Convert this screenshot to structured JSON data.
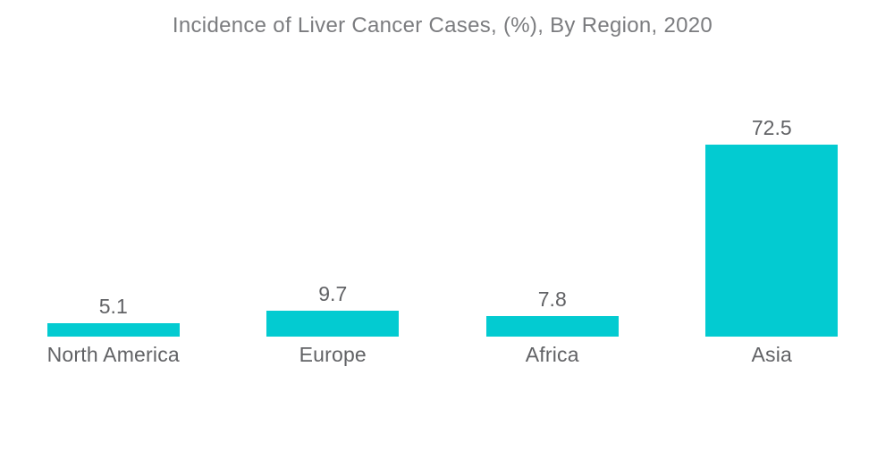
{
  "page": {
    "background_color": "#FFFFFF"
  },
  "chart_data": {
    "type": "bar",
    "title": "Incidence of Liver Cancer Cases, (%), By Region, 2020",
    "categories": [
      "North America",
      "Europe",
      "Africa",
      "Asia"
    ],
    "values": [
      5.1,
      9.7,
      7.8,
      72.5
    ],
    "value_labels": [
      "5.1",
      "9.7",
      "7.8",
      "72.5"
    ],
    "xlabel": "",
    "ylabel": "",
    "ylim": [
      0,
      80
    ],
    "grid": false,
    "legend": false,
    "axes_visible": false,
    "value_label_position": "above-bar",
    "category_label_position": "below-bar",
    "bar_color": "#03CBD1",
    "title_color": "#7B7C7F",
    "label_color": "#616265"
  }
}
